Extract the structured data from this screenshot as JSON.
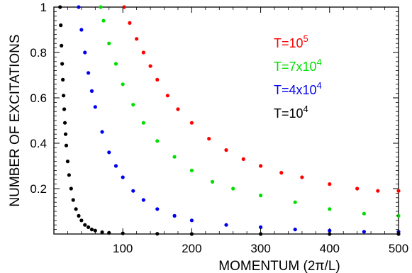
{
  "chart_data": {
    "type": "scatter",
    "title": "",
    "xlabel": "MOMENTUM (2π/L)",
    "ylabel": "NUMBER OF EXCITATIONS",
    "xlim": [
      0,
      500
    ],
    "ylim": [
      0,
      1.0
    ],
    "x_ticks": [
      100,
      200,
      300,
      400,
      500
    ],
    "x_tick_labels": [
      "100",
      "200",
      "300",
      "400",
      "500"
    ],
    "y_ticks": [
      0.2,
      0.4,
      0.6,
      0.8,
      1.0
    ],
    "y_tick_labels": [
      "0.2",
      "0.4",
      "0.6",
      "0.8",
      "1"
    ],
    "grid": false,
    "legend_position": "top-right",
    "series": [
      {
        "name": "T=10^5",
        "label_base": "T=10",
        "label_exp": "5",
        "color": "#ff0000",
        "x": [
          102,
          110,
          120,
          130,
          140,
          150,
          165,
          180,
          200,
          225,
          250,
          275,
          300,
          330,
          360,
          400,
          440,
          470,
          500
        ],
        "y": [
          1.0,
          0.93,
          0.86,
          0.8,
          0.74,
          0.68,
          0.61,
          0.55,
          0.49,
          0.42,
          0.37,
          0.33,
          0.3,
          0.27,
          0.25,
          0.22,
          0.2,
          0.19,
          0.19
        ]
      },
      {
        "name": "T=7x10^4",
        "label_base": "T=7x10",
        "label_exp": "4",
        "color": "#00e000",
        "x": [
          68,
          72,
          80,
          90,
          100,
          115,
          130,
          150,
          175,
          200,
          230,
          260,
          300,
          350,
          400,
          450,
          500
        ],
        "y": [
          1.0,
          0.94,
          0.84,
          0.75,
          0.66,
          0.57,
          0.49,
          0.41,
          0.34,
          0.28,
          0.23,
          0.2,
          0.17,
          0.14,
          0.11,
          0.09,
          0.08
        ]
      },
      {
        "name": "T=4x10^4",
        "label_base": "T=4x10",
        "label_exp": "4",
        "color": "#0000ee",
        "x": [
          36,
          40,
          45,
          50,
          55,
          60,
          70,
          80,
          90,
          100,
          115,
          130,
          150,
          175,
          200,
          250,
          300,
          350,
          400,
          450,
          500
        ],
        "y": [
          1.0,
          0.9,
          0.8,
          0.71,
          0.63,
          0.56,
          0.45,
          0.36,
          0.3,
          0.25,
          0.19,
          0.15,
          0.11,
          0.08,
          0.06,
          0.04,
          0.03,
          0.02,
          0.015,
          0.01,
          0.01
        ]
      },
      {
        "name": "T=10^4",
        "label_base": "T=10",
        "label_exp": "4",
        "color": "#000000",
        "x": [
          9,
          10,
          11,
          12,
          13,
          14,
          15,
          16,
          17,
          18,
          20,
          22,
          25,
          28,
          32,
          36,
          40,
          45,
          50,
          55,
          60,
          70,
          80,
          100,
          150,
          200,
          300,
          400,
          500
        ],
        "y": [
          1.0,
          0.92,
          0.83,
          0.75,
          0.68,
          0.61,
          0.55,
          0.49,
          0.44,
          0.39,
          0.32,
          0.26,
          0.2,
          0.15,
          0.11,
          0.08,
          0.06,
          0.04,
          0.03,
          0.02,
          0.015,
          0.008,
          0.005,
          0.003,
          0.001,
          0.0,
          0.0,
          0.0,
          0.0
        ]
      }
    ]
  }
}
